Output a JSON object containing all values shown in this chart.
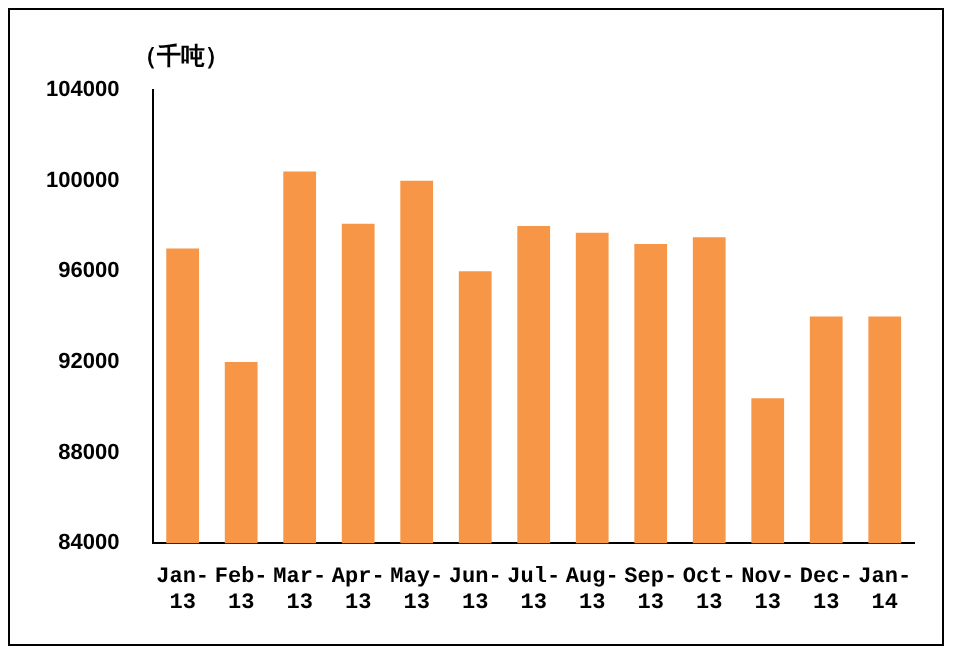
{
  "chart_data": {
    "type": "bar",
    "ylabel": "（千吨）",
    "categories": [
      "Jan-13",
      "Feb-13",
      "Mar-13",
      "Apr-13",
      "May-13",
      "Jun-13",
      "Jul-13",
      "Aug-13",
      "Sep-13",
      "Oct-13",
      "Nov-13",
      "Dec-13",
      "Jan-14"
    ],
    "values": [
      97000,
      92000,
      100400,
      98100,
      100000,
      96000,
      98000,
      97700,
      97200,
      97500,
      90400,
      94000,
      94000
    ],
    "color": "#f79646",
    "ylim": [
      84000,
      104000
    ],
    "yticks": [
      84000,
      88000,
      92000,
      96000,
      100000,
      104000
    ],
    "grid": false,
    "legend": false
  }
}
